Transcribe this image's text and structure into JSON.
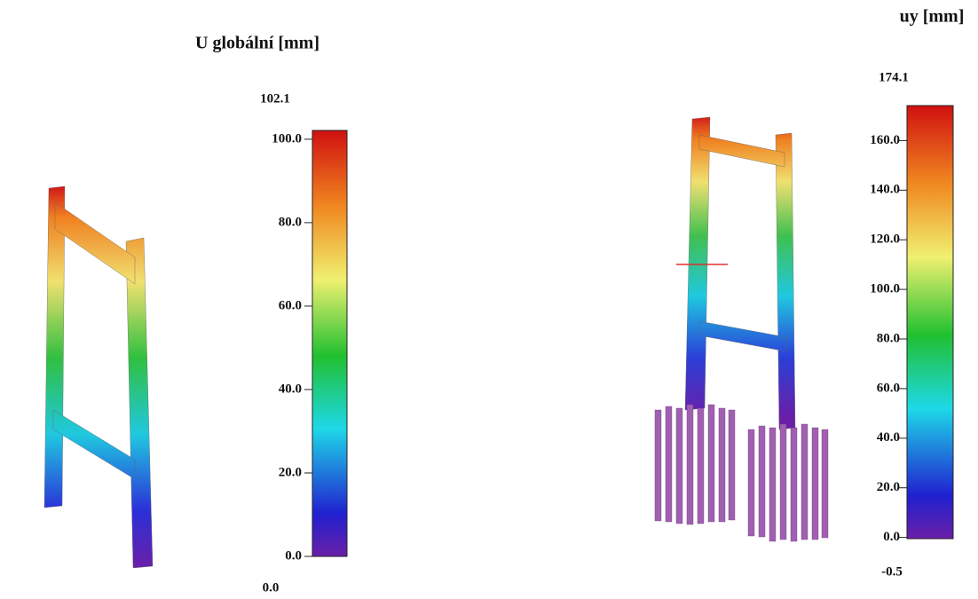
{
  "panels": [
    {
      "title": "U globální [mm]",
      "max": {
        "value": 102.1,
        "label": "102.1"
      },
      "min": {
        "value": 0,
        "label": "0.0"
      },
      "ticks": [
        {
          "value": 100,
          "label": "100.0"
        },
        {
          "value": 80,
          "label": "80.0"
        },
        {
          "value": 60,
          "label": "60.0"
        },
        {
          "value": 40,
          "label": "40.0"
        },
        {
          "value": 20,
          "label": "20.0"
        },
        {
          "value": 0,
          "label": "0.0"
        }
      ]
    },
    {
      "title": "uy [mm]",
      "max": {
        "value": 174.1,
        "label": "174.1"
      },
      "min": {
        "value": -0.5,
        "label": "-0.5"
      },
      "ticks": [
        {
          "value": 160,
          "label": "160.0"
        },
        {
          "value": 140,
          "label": "140.0"
        },
        {
          "value": 120,
          "label": "120.0"
        },
        {
          "value": 100,
          "label": "100.0"
        },
        {
          "value": 80,
          "label": "80.0"
        },
        {
          "value": 60,
          "label": "60.0"
        },
        {
          "value": 40,
          "label": "40.0"
        },
        {
          "value": 20,
          "label": "20.0"
        },
        {
          "value": 0,
          "label": "0.0"
        }
      ]
    }
  ]
}
